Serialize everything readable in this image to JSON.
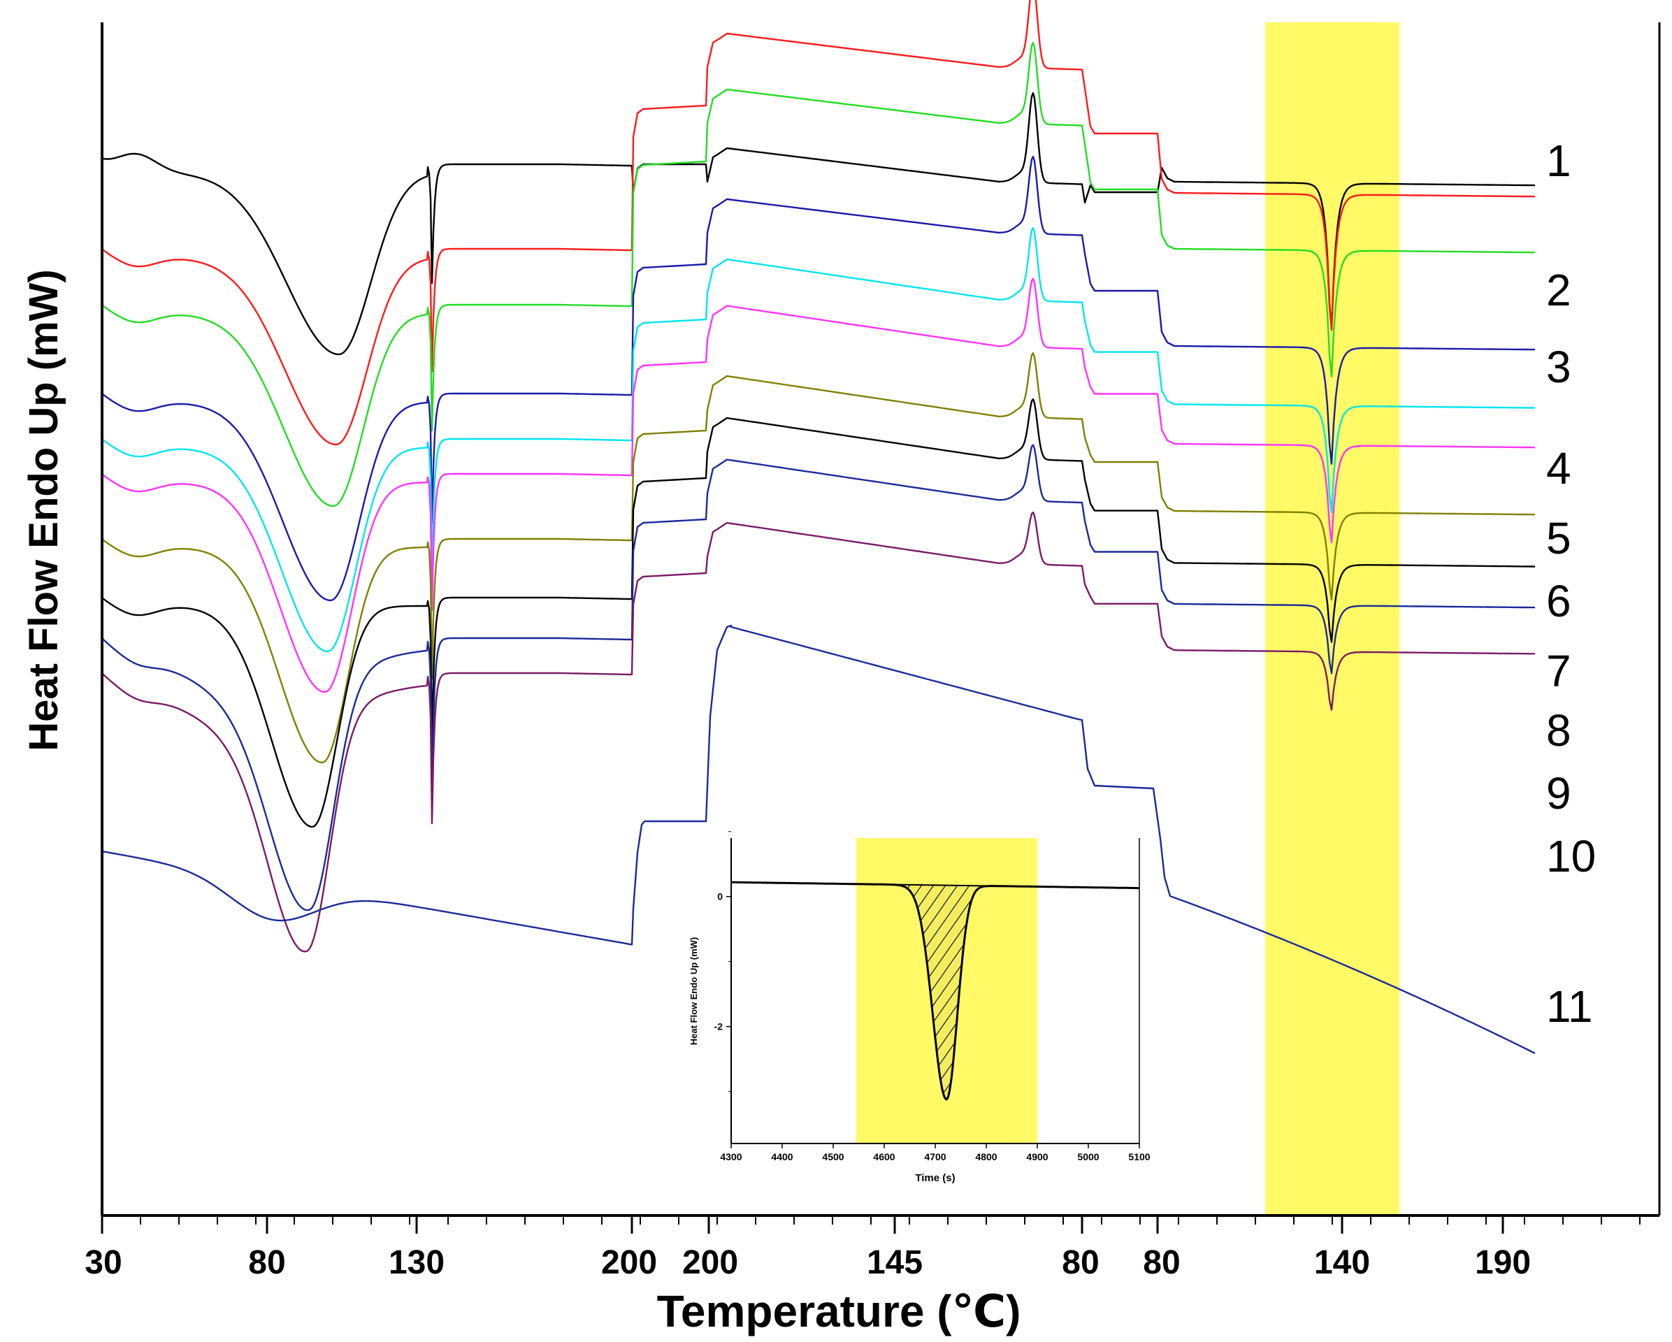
{
  "chart_data": {
    "type": "line",
    "title": "",
    "xlabel": "Temperature (℃)",
    "ylabel": "Heat Flow Endo Up (mW)",
    "x_tick_labels": [
      "30",
      "80",
      "130",
      "200",
      "200",
      "145",
      "80",
      "80",
      "140",
      "190"
    ],
    "highlight_color": "#fffa66",
    "series": [
      {
        "name": "1",
        "color": "#000000"
      },
      {
        "name": "2",
        "color": "#ff1a1a"
      },
      {
        "name": "3",
        "color": "#22dd22"
      },
      {
        "name": "4",
        "color": "#1a1aaa"
      },
      {
        "name": "5",
        "color": "#00e5ee"
      },
      {
        "name": "6",
        "color": "#ff33ff"
      },
      {
        "name": "7",
        "color": "#808000"
      },
      {
        "name": "8",
        "color": "#000000"
      },
      {
        "name": "9",
        "color": "#1a2a99"
      },
      {
        "name": "10",
        "color": "#7a1a66"
      },
      {
        "name": "11",
        "color": "#1a2a99"
      }
    ],
    "inset": {
      "type": "line",
      "xlabel": "Time (s)",
      "ylabel": "Heat Flow Endo Up (mW)",
      "x_ticks": [
        "4300",
        "4400",
        "4500",
        "4600",
        "4700",
        "4800",
        "4900",
        "5000",
        "5100"
      ],
      "y_ticks": [
        "0",
        "-2"
      ],
      "xlim": [
        4300,
        5100
      ],
      "ylim": [
        -3.8,
        0.9
      ],
      "highlight_range": [
        4545,
        4900
      ],
      "baseline": {
        "start": 0.22,
        "end": 0.13
      },
      "peak": {
        "x": 4722,
        "y": -3.12
      },
      "hatched_area": true
    }
  }
}
